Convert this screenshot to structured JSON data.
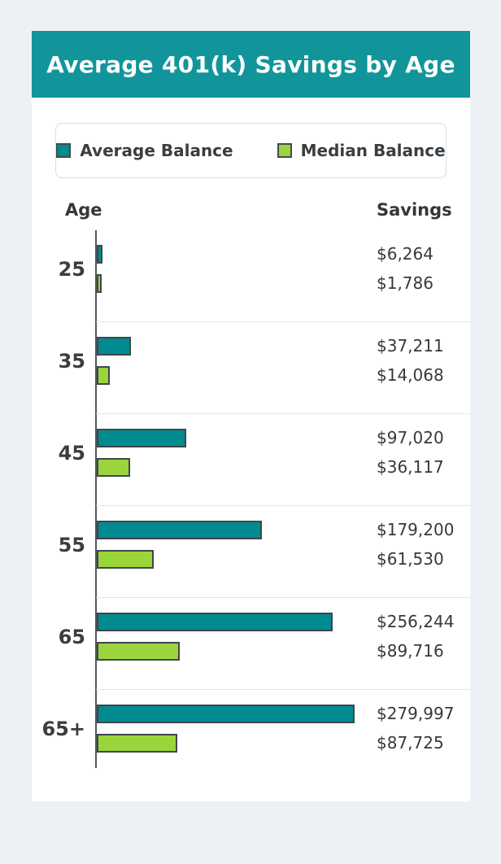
{
  "title": "Average 401(k) Savings by Age",
  "legend": {
    "items": [
      {
        "label": "Average Balance",
        "color": "#018A90"
      },
      {
        "label": "Median Balance",
        "color": "#9AD53C"
      }
    ]
  },
  "columns": {
    "age": "Age",
    "savings": "Savings"
  },
  "colors": {
    "banner": "#11959B",
    "background": "#edf1f5",
    "card": "#ffffff",
    "bar_border": "#3f464b",
    "divider": "#d9e8f3"
  },
  "chart_data": {
    "type": "bar",
    "orientation": "horizontal",
    "title": "Average 401(k) Savings by Age",
    "xlabel": "Savings",
    "ylabel": "Age",
    "max_value": 279997,
    "grid": false,
    "legend_position": "top",
    "categories": [
      "25",
      "35",
      "45",
      "55",
      "65",
      "65+"
    ],
    "series": [
      {
        "name": "Average Balance",
        "color": "#018A90",
        "values": [
          6264,
          37211,
          97020,
          179200,
          256244,
          279997
        ],
        "labels": [
          "$6,264",
          "$37,211",
          "$97,020",
          "$179,200",
          "$256,244",
          "$279,997"
        ]
      },
      {
        "name": "Median Balance",
        "color": "#9AD53C",
        "values": [
          1786,
          14068,
          36117,
          61530,
          89716,
          87725
        ],
        "labels": [
          "$1,786",
          "$14,068",
          "$36,117",
          "$61,530",
          "$89,716",
          "$87,725"
        ]
      }
    ]
  }
}
